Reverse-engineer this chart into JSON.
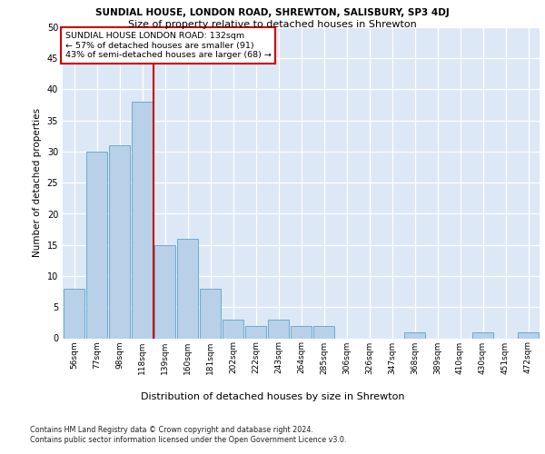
{
  "title1": "SUNDIAL HOUSE, LONDON ROAD, SHREWTON, SALISBURY, SP3 4DJ",
  "title2": "Size of property relative to detached houses in Shrewton",
  "xlabel": "Distribution of detached houses by size in Shrewton",
  "ylabel": "Number of detached properties",
  "footer1": "Contains HM Land Registry data © Crown copyright and database right 2024.",
  "footer2": "Contains public sector information licensed under the Open Government Licence v3.0.",
  "bar_labels": [
    "56sqm",
    "77sqm",
    "98sqm",
    "118sqm",
    "139sqm",
    "160sqm",
    "181sqm",
    "202sqm",
    "222sqm",
    "243sqm",
    "264sqm",
    "285sqm",
    "306sqm",
    "326sqm",
    "347sqm",
    "368sqm",
    "389sqm",
    "410sqm",
    "430sqm",
    "451sqm",
    "472sqm"
  ],
  "bar_values": [
    8,
    30,
    31,
    38,
    15,
    16,
    8,
    3,
    2,
    3,
    2,
    2,
    0,
    0,
    0,
    1,
    0,
    0,
    1,
    0,
    1
  ],
  "bar_color": "#b8d0e8",
  "bar_edge_color": "#6aabd2",
  "annotation_title": "SUNDIAL HOUSE LONDON ROAD: 132sqm",
  "annotation_line1": "← 57% of detached houses are smaller (91)",
  "annotation_line2": "43% of semi-detached houses are larger (68) →",
  "annotation_box_color": "#ffffff",
  "annotation_box_edge_color": "#cc0000",
  "vline_x_index": 3.5,
  "vline_color": "#cc0000",
  "ylim": [
    0,
    50
  ],
  "yticks": [
    0,
    5,
    10,
    15,
    20,
    25,
    30,
    35,
    40,
    45,
    50
  ],
  "plot_bg_color": "#dce8f5",
  "title1_fontsize": 7.5,
  "title2_fontsize": 8.0,
  "ylabel_fontsize": 7.5,
  "xlabel_fontsize": 8.0,
  "tick_fontsize": 7.0,
  "footer_fontsize": 5.8
}
